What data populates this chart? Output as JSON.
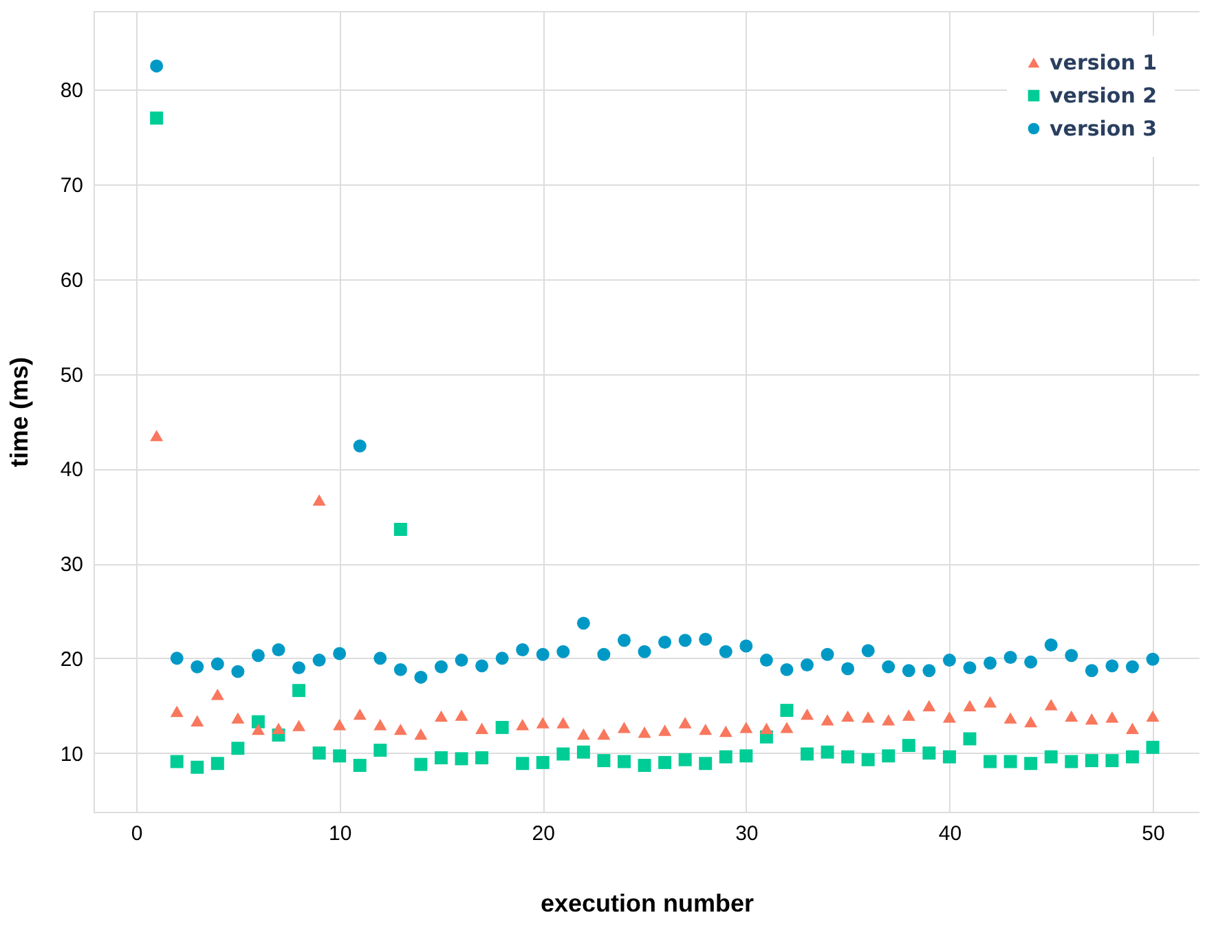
{
  "chart_data": {
    "type": "scatter",
    "xlabel": "execution number",
    "ylabel": "time (ms)",
    "x": [
      1,
      2,
      3,
      4,
      5,
      6,
      7,
      8,
      9,
      10,
      11,
      12,
      13,
      14,
      15,
      16,
      17,
      18,
      19,
      20,
      21,
      22,
      23,
      24,
      25,
      26,
      27,
      28,
      29,
      30,
      31,
      32,
      33,
      34,
      35,
      36,
      37,
      38,
      39,
      40,
      41,
      42,
      43,
      44,
      45,
      46,
      47,
      48,
      49,
      50
    ],
    "series": [
      {
        "name": "version 1",
        "color": "#f8775d",
        "marker": "triangle",
        "values": [
          43.5,
          14.4,
          13.4,
          16.2,
          13.7,
          12.5,
          12.6,
          12.9,
          36.7,
          13.0,
          14.1,
          13.0,
          12.5,
          12.0,
          13.9,
          14.0,
          12.6,
          null,
          13.0,
          13.2,
          13.2,
          12.0,
          12.0,
          12.7,
          12.2,
          12.4,
          13.2,
          12.5,
          12.3,
          12.7,
          12.6,
          12.7,
          14.1,
          13.5,
          13.9,
          13.8,
          13.5,
          14.0,
          15.0,
          13.8,
          15.0,
          15.4,
          13.7,
          13.3,
          15.1,
          13.9,
          13.6,
          13.8,
          12.6,
          13.9
        ]
      },
      {
        "name": "version 2",
        "color": "#00cc96",
        "marker": "square",
        "values": [
          77.0,
          9.1,
          8.5,
          8.9,
          10.5,
          13.3,
          11.9,
          16.6,
          10.0,
          9.7,
          8.7,
          10.3,
          33.6,
          8.8,
          9.5,
          9.4,
          9.5,
          12.7,
          8.9,
          9.0,
          9.9,
          10.1,
          9.2,
          9.1,
          8.7,
          9.0,
          9.3,
          8.9,
          9.6,
          9.7,
          11.7,
          14.5,
          9.9,
          10.1,
          9.6,
          9.3,
          9.7,
          10.8,
          10.0,
          9.6,
          11.5,
          9.1,
          9.1,
          8.9,
          9.6,
          9.1,
          9.2,
          9.2,
          9.6,
          10.6
        ]
      },
      {
        "name": "version 3",
        "color": "#0099c6",
        "marker": "circle",
        "values": [
          82.5,
          20.0,
          19.1,
          19.4,
          18.6,
          20.3,
          20.9,
          19.0,
          19.8,
          20.5,
          42.4,
          20.0,
          18.8,
          18.0,
          19.1,
          19.8,
          19.2,
          20.0,
          20.9,
          20.4,
          20.7,
          23.7,
          20.4,
          21.9,
          20.7,
          21.7,
          21.9,
          22.0,
          20.7,
          21.3,
          19.8,
          18.8,
          19.3,
          20.4,
          18.9,
          20.8,
          19.1,
          18.7,
          18.7,
          19.8,
          19.0,
          19.5,
          20.1,
          19.6,
          21.4,
          20.3,
          18.7,
          19.2,
          19.1,
          19.9
        ]
      }
    ],
    "xlim": [
      -2.1,
      52.3
    ],
    "ylim": [
      3.8,
      88.3
    ],
    "xticks": [
      0,
      10,
      20,
      30,
      40,
      50
    ],
    "yticks": [
      10,
      20,
      30,
      40,
      50,
      60,
      70,
      80
    ],
    "grid": true,
    "legend": "top right"
  }
}
